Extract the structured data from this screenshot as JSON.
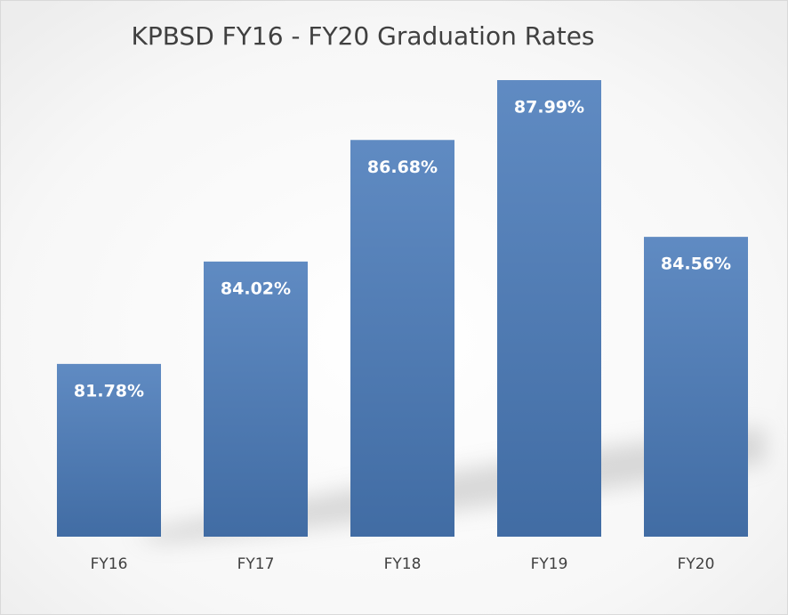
{
  "chart_data": {
    "type": "bar",
    "title": "KPBSD FY16 - FY20 Graduation Rates",
    "categories": [
      "FY16",
      "FY17",
      "FY18",
      "FY19",
      "FY20"
    ],
    "values": [
      81.78,
      84.02,
      86.68,
      87.99,
      84.56
    ],
    "value_labels": [
      "81.78%",
      "84.02%",
      "86.68%",
      "87.99%",
      "84.56%"
    ],
    "color": "#4a7bba",
    "ylim": [
      78,
      88
    ]
  }
}
